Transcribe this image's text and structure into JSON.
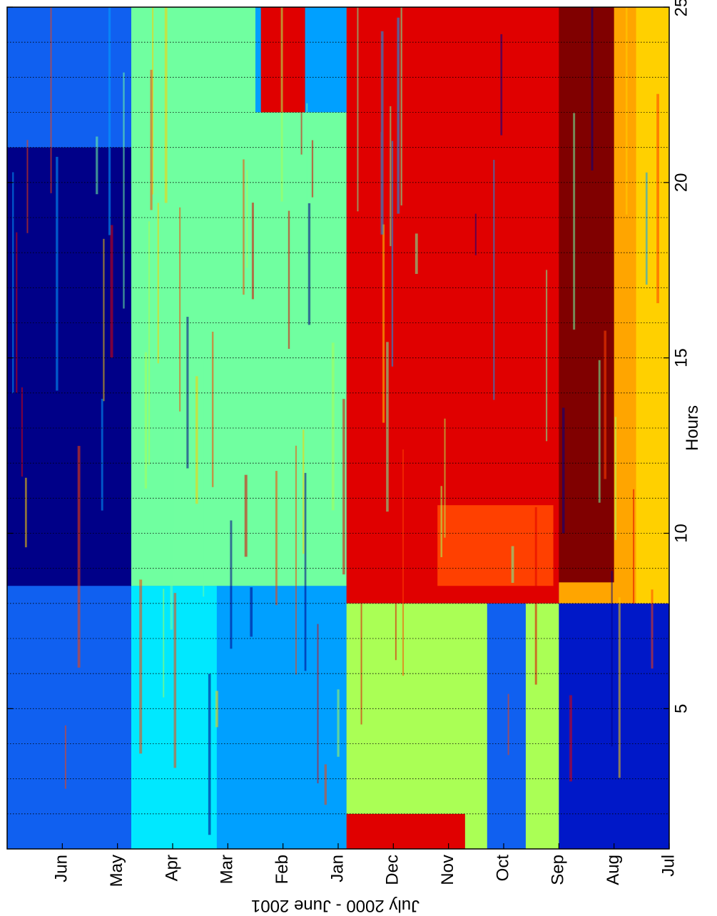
{
  "chart_data": {
    "type": "heatmap",
    "title": "",
    "xlabel": "Hours",
    "ylabel": "July 2000 - June 2001",
    "orientation": "rotated-90-clockwise",
    "x_ticks": [
      "5",
      "10",
      "15",
      "20",
      "25"
    ],
    "x_range": [
      1,
      25
    ],
    "y_ticks": [
      "Jul",
      "Aug",
      "Sep",
      "Oct",
      "Nov",
      "Dec",
      "Jan",
      "Feb",
      "Mar",
      "Apr",
      "May",
      "Jun"
    ],
    "grid": "dotted vertical lines at each month boundary",
    "colormap": "jet",
    "regions": [
      {
        "months": [
          0,
          2
        ],
        "hours": [
          1,
          8
        ],
        "color": "#0018c8"
      },
      {
        "months": [
          0,
          2
        ],
        "hours": [
          8,
          25
        ],
        "color": "#ffa500"
      },
      {
        "months": [
          0,
          0.6
        ],
        "hours": [
          8,
          25
        ],
        "color": "#ffd000"
      },
      {
        "months": [
          1.0,
          2.05
        ],
        "hours": [
          8.6,
          25
        ],
        "color": "#800000"
      },
      {
        "months": [
          2,
          3.25
        ],
        "hours": [
          1,
          8
        ],
        "color": "#aaff55"
      },
      {
        "months": [
          2.6,
          3.3
        ],
        "hours": [
          1,
          8
        ],
        "color": "#1060f0"
      },
      {
        "months": [
          2,
          5.85
        ],
        "hours": [
          8,
          25
        ],
        "color": "#e00000"
      },
      {
        "months": [
          2.1,
          4.2
        ],
        "hours": [
          8.5,
          10.8
        ],
        "color": "#ff4000"
      },
      {
        "months": [
          3.3,
          5.85
        ],
        "hours": [
          1,
          8
        ],
        "color": "#aaff55"
      },
      {
        "months": [
          3.7,
          5.85
        ],
        "hours": [
          1,
          2
        ],
        "color": "#e00000"
      },
      {
        "months": [
          5.85,
          9.75
        ],
        "hours": [
          1,
          8.5
        ],
        "color": "#00a0ff"
      },
      {
        "months": [
          8.2,
          9.75
        ],
        "hours": [
          1,
          8.5
        ],
        "color": "#00e8ff"
      },
      {
        "months": [
          5.85,
          9.75
        ],
        "hours": [
          8.5,
          25
        ],
        "color": "#70ffa0"
      },
      {
        "months": [
          5.85,
          7.5
        ],
        "hours": [
          22,
          25
        ],
        "color": "#00a0ff"
      },
      {
        "months": [
          6.6,
          7.4
        ],
        "hours": [
          22,
          25
        ],
        "color": "#e00000"
      },
      {
        "months": [
          9.75,
          12
        ],
        "hours": [
          1,
          25
        ],
        "color": "#1060f0"
      },
      {
        "months": [
          9.75,
          12
        ],
        "hours": [
          8.5,
          21
        ],
        "color": "#000088"
      }
    ]
  }
}
